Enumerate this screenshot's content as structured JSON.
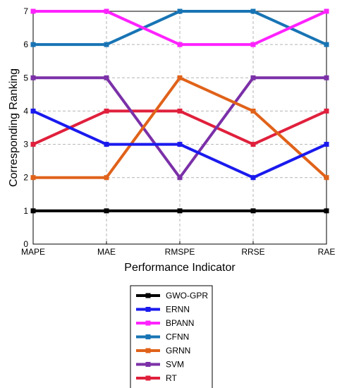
{
  "chart_data": {
    "type": "line",
    "categories": [
      "MAPE",
      "MAE",
      "RMSPE",
      "RRSE",
      "RAE"
    ],
    "xlabel": "Performance Indicator",
    "ylabel": "Corresponding Ranking",
    "ylim": [
      0,
      7
    ],
    "yticks": [
      "0",
      "1",
      "2",
      "3",
      "4",
      "5",
      "6",
      "7"
    ],
    "grid": true,
    "legend_position": "bottom",
    "series": [
      {
        "name": "GWO-GPR",
        "color": "#000000",
        "values": [
          1,
          1,
          1,
          1,
          1
        ]
      },
      {
        "name": "ERNN",
        "color": "#1a1aee",
        "values": [
          4,
          3,
          3,
          2,
          3
        ]
      },
      {
        "name": "BPANN",
        "color": "#ff22ff",
        "values": [
          7,
          7,
          6,
          6,
          7
        ]
      },
      {
        "name": "CFNN",
        "color": "#1874b4",
        "values": [
          6,
          6,
          7,
          7,
          6
        ]
      },
      {
        "name": "GRNN",
        "color": "#e0621a",
        "values": [
          2,
          2,
          5,
          4,
          2
        ]
      },
      {
        "name": "SVM",
        "color": "#7b30a8",
        "values": [
          5,
          5,
          2,
          5,
          5
        ]
      },
      {
        "name": "RT",
        "color": "#e0203c",
        "values": [
          3,
          4,
          4,
          3,
          4
        ]
      }
    ]
  }
}
